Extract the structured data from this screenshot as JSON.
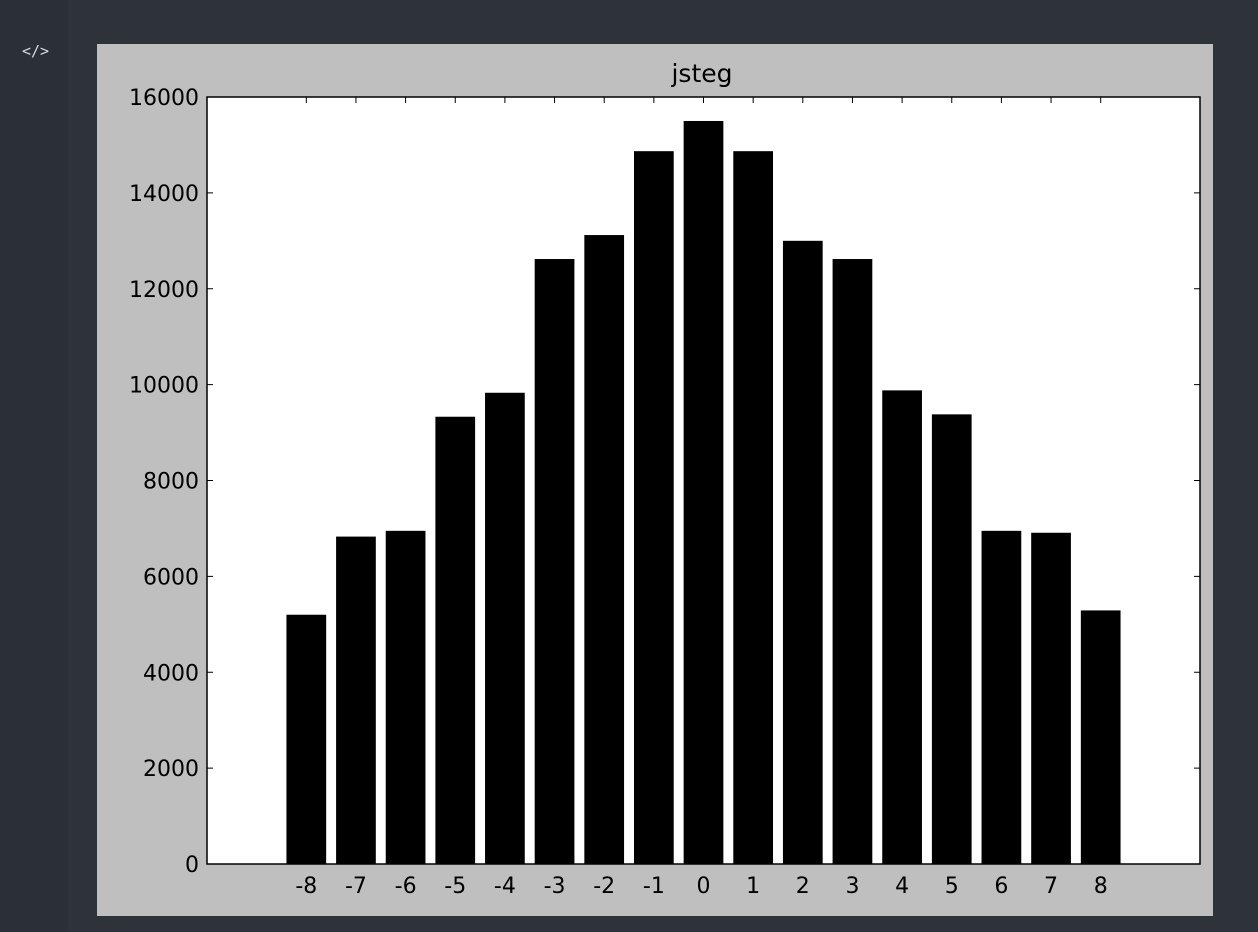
{
  "gutter": {
    "code_icon_glyph": "</>",
    "code_icon_name": "code-icon"
  },
  "colors": {
    "page_background": "#2b2f37",
    "figure_background": "#bfbfbf",
    "plot_background": "#ffffff",
    "bar_color": "#000000"
  },
  "chart_data": {
    "type": "bar",
    "title": "jsteg",
    "xlabel": "",
    "ylabel": "",
    "categories": [
      "-8",
      "-7",
      "-6",
      "-5",
      "-4",
      "-3",
      "-2",
      "-1",
      "0",
      "1",
      "2",
      "3",
      "4",
      "5",
      "6",
      "7",
      "8"
    ],
    "x": [
      -8,
      -7,
      -6,
      -5,
      -4,
      -3,
      -2,
      -1,
      0,
      1,
      2,
      3,
      4,
      5,
      6,
      7,
      8
    ],
    "values": [
      5200,
      6830,
      6950,
      9330,
      9830,
      12620,
      13120,
      14870,
      15500,
      14870,
      13000,
      12620,
      9880,
      9380,
      6950,
      6910,
      5290
    ],
    "xlim": [
      -10,
      10
    ],
    "ylim": [
      0,
      16000
    ],
    "yticks": [
      0,
      2000,
      4000,
      6000,
      8000,
      10000,
      12000,
      14000,
      16000
    ],
    "ytick_labels": [
      "0",
      "2000",
      "4000",
      "6000",
      "8000",
      "10000",
      "12000",
      "14000",
      "16000"
    ],
    "grid": false,
    "legend": "none"
  }
}
